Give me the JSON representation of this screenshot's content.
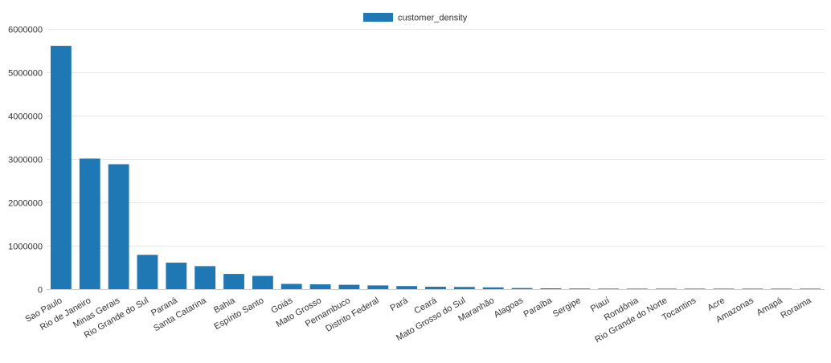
{
  "chart_data": {
    "type": "bar",
    "title": "",
    "xlabel": "",
    "ylabel": "",
    "categories": [
      "Sao Paulo",
      "Rio de Janeiro",
      "Minas Gerais",
      "Rio Grande do Sul",
      "Paraná",
      "Santa Catarina",
      "Bahia",
      "Espírito Santo",
      "Goiás",
      "Mato Grosso",
      "Pernambuco",
      "Distrito Federal",
      "Pará",
      "Ceará",
      "Mato Grosso do Sul",
      "Maranhão",
      "Alagoas",
      "Paraíba",
      "Sergipe",
      "Piauí",
      "Rondônia",
      "Rio Grande do Norte",
      "Tocantins",
      "Acre",
      "Amazonas",
      "Amapá",
      "Roraima"
    ],
    "series": [
      {
        "name": "customer_density",
        "color": "#1f77b4",
        "values": [
          5610000,
          3010000,
          2880000,
          790000,
          610000,
          530000,
          350000,
          305000,
          120000,
          110000,
          100000,
          85000,
          70000,
          55000,
          50000,
          40000,
          25000,
          18000,
          14000,
          12000,
          10000,
          8000,
          6000,
          1500,
          800,
          1500,
          1000
        ]
      }
    ],
    "ylim": [
      0,
      6000000
    ],
    "yticks": [
      0,
      1000000,
      2000000,
      3000000,
      4000000,
      5000000,
      6000000
    ],
    "ytick_labels": [
      "0",
      "1000000",
      "2000000",
      "3000000",
      "4000000",
      "5000000",
      "6000000"
    ],
    "grid": true,
    "legend": {
      "position": "top-center"
    },
    "colors": {
      "bar": "#1f77b4",
      "grid": "#e6e6e6",
      "axis": "#cccccc",
      "text": "#333333"
    }
  }
}
